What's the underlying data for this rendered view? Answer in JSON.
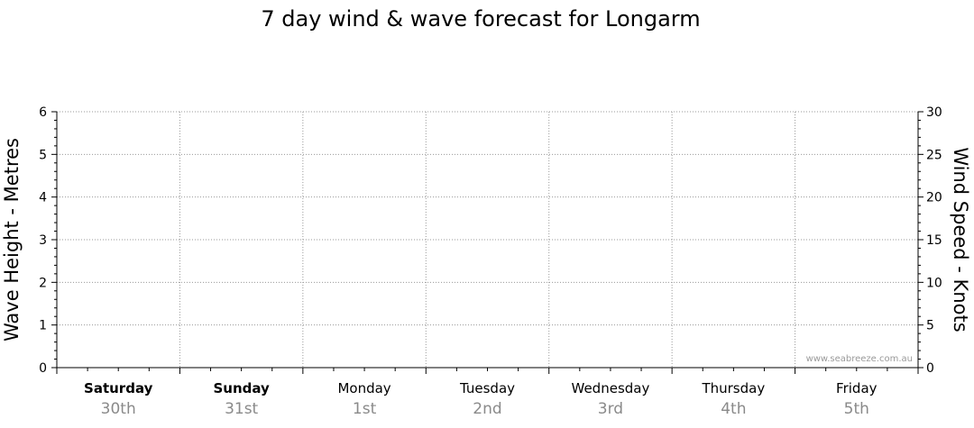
{
  "chart_data": {
    "type": "line",
    "title": "7 day wind & wave forecast for Longarm",
    "ylabel_left": "Wave Height - Metres",
    "ylabel_right": "Wind Speed - Knots",
    "ylim_left": [
      0,
      6
    ],
    "ylim_right": [
      0,
      30
    ],
    "yticks_left": [
      "0",
      "1",
      "2",
      "3",
      "4",
      "5",
      "6"
    ],
    "yticks_right": [
      "0",
      "5",
      "10",
      "15",
      "20",
      "25",
      "30"
    ],
    "days": [
      {
        "day": "Saturday",
        "date": "30th",
        "weekend": true
      },
      {
        "day": "Sunday",
        "date": "31st",
        "weekend": true
      },
      {
        "day": "Monday",
        "date": "1st",
        "weekend": false
      },
      {
        "day": "Tuesday",
        "date": "2nd",
        "weekend": false
      },
      {
        "day": "Wednesday",
        "date": "3rd",
        "weekend": false
      },
      {
        "day": "Thursday",
        "date": "4th",
        "weekend": false
      },
      {
        "day": "Friday",
        "date": "5th",
        "weekend": false
      }
    ],
    "series": [],
    "grid": true,
    "watermark": "www.seabreeze.com.au"
  }
}
